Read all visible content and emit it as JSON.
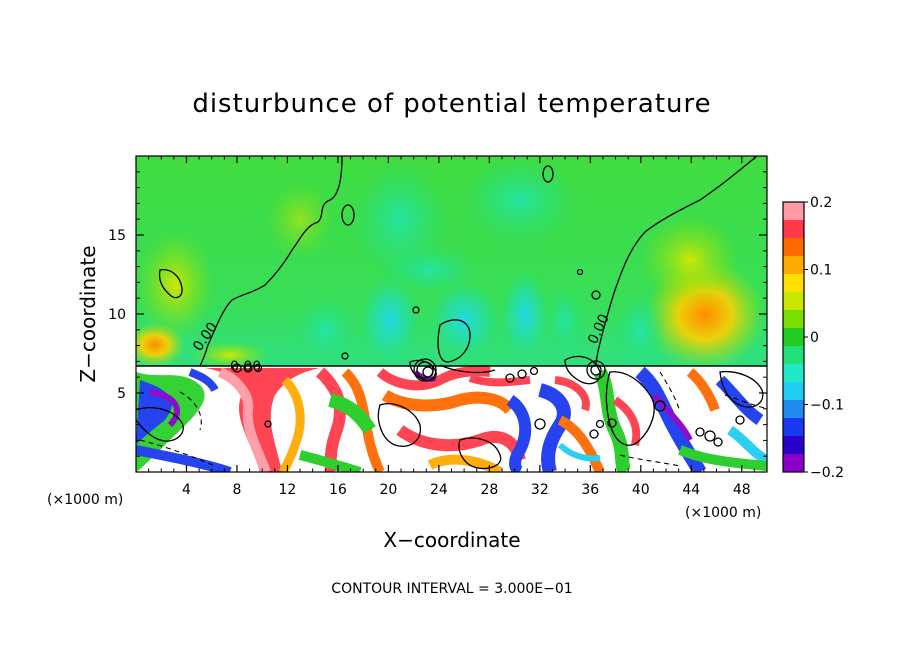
{
  "chart_data": {
    "type": "heatmap",
    "title": "disturbunce of potential temperature",
    "xlabel": "X−coordinate",
    "ylabel": "Z−coordinate",
    "x_unit": "(×1000 m)",
    "y_unit": "(×1000 m)",
    "xlim": [
      0,
      50
    ],
    "ylim": [
      0,
      20
    ],
    "x_ticks": [
      4,
      8,
      12,
      16,
      20,
      24,
      28,
      32,
      36,
      40,
      44,
      48
    ],
    "x_tick_labels": [
      "4",
      "8",
      "12",
      "16",
      "20",
      "24",
      "28",
      "32",
      "36",
      "40",
      "44",
      "48"
    ],
    "y_ticks": [
      5,
      10,
      15
    ],
    "y_tick_labels": [
      "5",
      "10",
      "15"
    ],
    "colorbar": {
      "min": -0.2,
      "max": 0.2,
      "ticks": [
        0.2,
        0.1,
        0,
        -0.1,
        -0.2
      ],
      "tick_labels": [
        "0.2",
        "0.1",
        "0",
        "−0.1",
        "−0.2"
      ],
      "colors": [
        "#ff9aa6",
        "#ff3a4a",
        "#ff6a00",
        "#ffaa00",
        "#ffe000",
        "#c8e800",
        "#7ade00",
        "#22cc22",
        "#22e07a",
        "#22e6c8",
        "#20cdf0",
        "#208cf0",
        "#1a3af0",
        "#2a00c8",
        "#8a00c8"
      ]
    },
    "contour_labels": [
      "0.00",
      "0.00",
      "0.00",
      "0.00"
    ],
    "contour_interval": "CONTOUR INTERVAL = 3.000E−01",
    "layer_boundary_z": 7
  },
  "colors": {
    "background": "#ffffff",
    "upper_field": "#3ade3a",
    "lower_field": "#ffffff"
  }
}
